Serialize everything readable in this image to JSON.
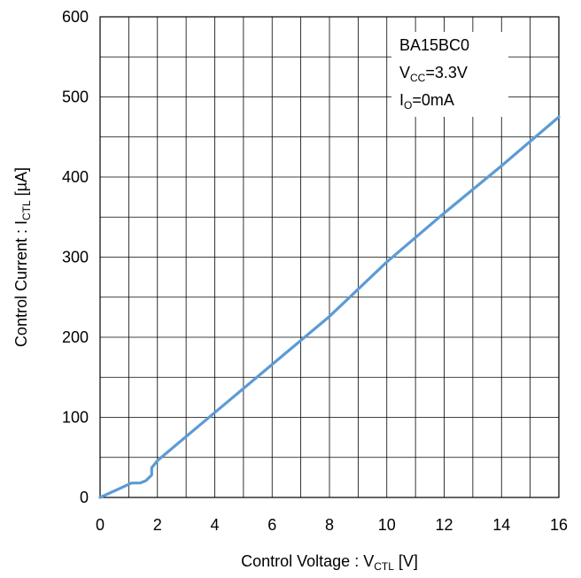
{
  "chart_data": {
    "type": "line",
    "xlabel": {
      "main": "Control Voltage : V",
      "sub": "CTL",
      "unit": " [V]"
    },
    "ylabel": {
      "main": "Control Current : I",
      "sub": "CTL",
      "unit": " [µA]"
    },
    "xlim": [
      0,
      16
    ],
    "ylim": [
      0,
      600
    ],
    "xticks": [
      "0",
      "2",
      "4",
      "6",
      "8",
      "10",
      "12",
      "14",
      "16"
    ],
    "yticks": [
      "0",
      "100",
      "200",
      "300",
      "400",
      "500",
      "600"
    ],
    "grid": true,
    "legend_box": {
      "position": "top-right",
      "lines": [
        {
          "main": "BA15BC0",
          "sub": "",
          "tail": ""
        },
        {
          "main": "V",
          "sub": "CC",
          "tail": "=3.3V"
        },
        {
          "main": "I",
          "sub": "O",
          "tail": "=0mA"
        }
      ]
    },
    "series": [
      {
        "color": "#5b9bd5",
        "x": [
          0,
          1.1,
          1.4,
          1.6,
          1.8,
          1.8,
          2,
          4,
          6,
          8,
          10,
          12,
          14,
          16
        ],
        "y": [
          0,
          18,
          18,
          21,
          28,
          37,
          46,
          106,
          166,
          226,
          294,
          355,
          414,
          475
        ]
      }
    ]
  }
}
